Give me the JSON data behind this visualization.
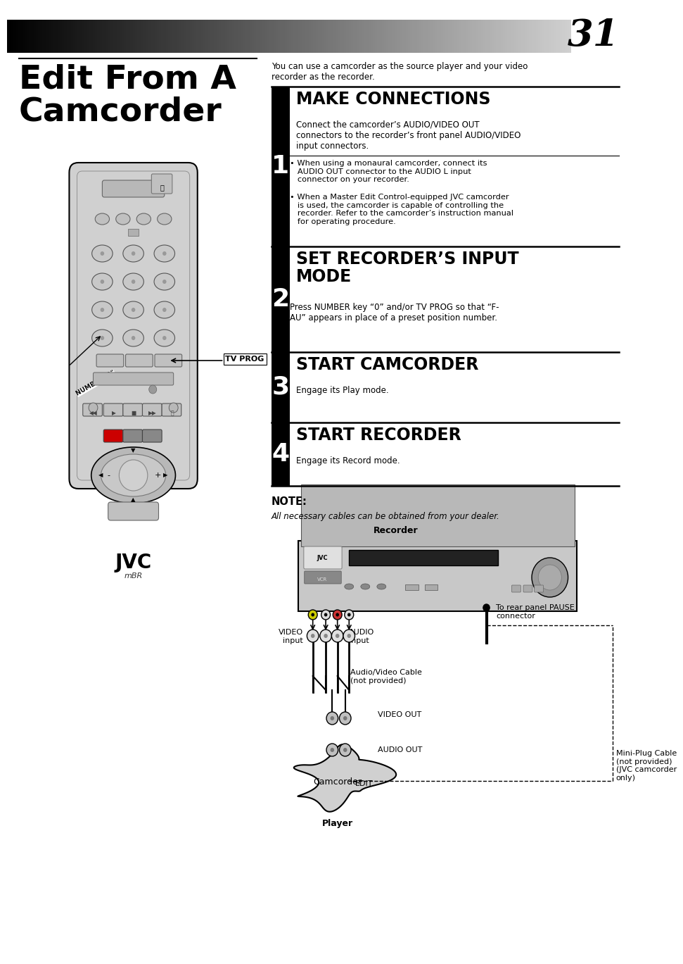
{
  "page_number": "31",
  "title": "Edit From A\nCamcorder",
  "intro_text": "You can use a camcorder as the source player and your video\nrecorder as the recorder.",
  "step1_heading": "MAKE CONNECTIONS",
  "step1_num": "1",
  "step1_body": "Connect the camcorder’s AUDIO/VIDEO OUT\nconnectors to the recorder’s front panel AUDIO/VIDEO\ninput connectors.",
  "step1_bullet1": "• When using a monaural camcorder, connect its\n   AUDIO OUT connector to the AUDIO L input\n   connector on your recorder.",
  "step1_bullet2": "• When a Master Edit Control-equipped JVC camcorder\n   is used, the camcorder is capable of controlling the\n   recorder. Refer to the camcorder’s instruction manual\n   for operating procedure.",
  "step2_heading": "SET RECORDER’S INPUT\nMODE",
  "step2_num": "2",
  "step2_body": "Press NUMBER key “0” and/or TV PROG so that “F-\nAU” appears in place of a preset position number.",
  "step3_heading": "START CAMCORDER",
  "step3_num": "3",
  "step3_body": "Engage its Play mode.",
  "step4_heading": "START RECORDER",
  "step4_num": "4",
  "step4_body": "Engage its Record mode.",
  "note_label": "NOTE:",
  "note_text": "All necessary cables can be obtained from your dealer.",
  "label_recorder": "Recorder",
  "label_video_input": "VIDEO\ninput",
  "label_audio_input": "AUDIO\ninput",
  "label_rear_pause": "To rear panel PAUSE\nconnector",
  "label_av_cable": "Audio/Video Cable\n(not provided)",
  "label_video_out": "VIDEO OUT",
  "label_camcorder": "Camcorder",
  "label_audio_out": "AUDIO OUT",
  "label_edit": "EDIT",
  "label_player": "Player",
  "label_mini_plug": "Mini-Plug Cable\n(not provided)\n(JVC camcorder\nonly)",
  "label_number": "NUMBER \"0\"",
  "label_tv_prog": "TV PROG",
  "bg_color": "#ffffff",
  "black": "#000000",
  "remote_fill": "#d8d8d8",
  "remote_edge": "#000000"
}
